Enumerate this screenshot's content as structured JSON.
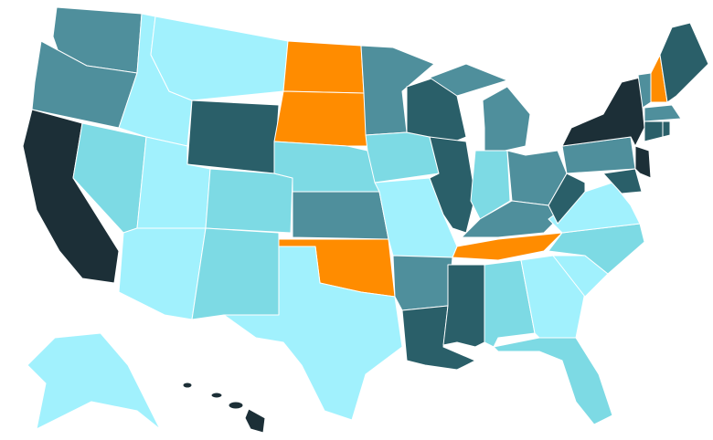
{
  "map": {
    "palette": [
      "#a1f1fd",
      "#7ddae4",
      "#4f8f9c",
      "#2a5f69",
      "#1c2f37",
      "#ff8c00"
    ]
  }
}
